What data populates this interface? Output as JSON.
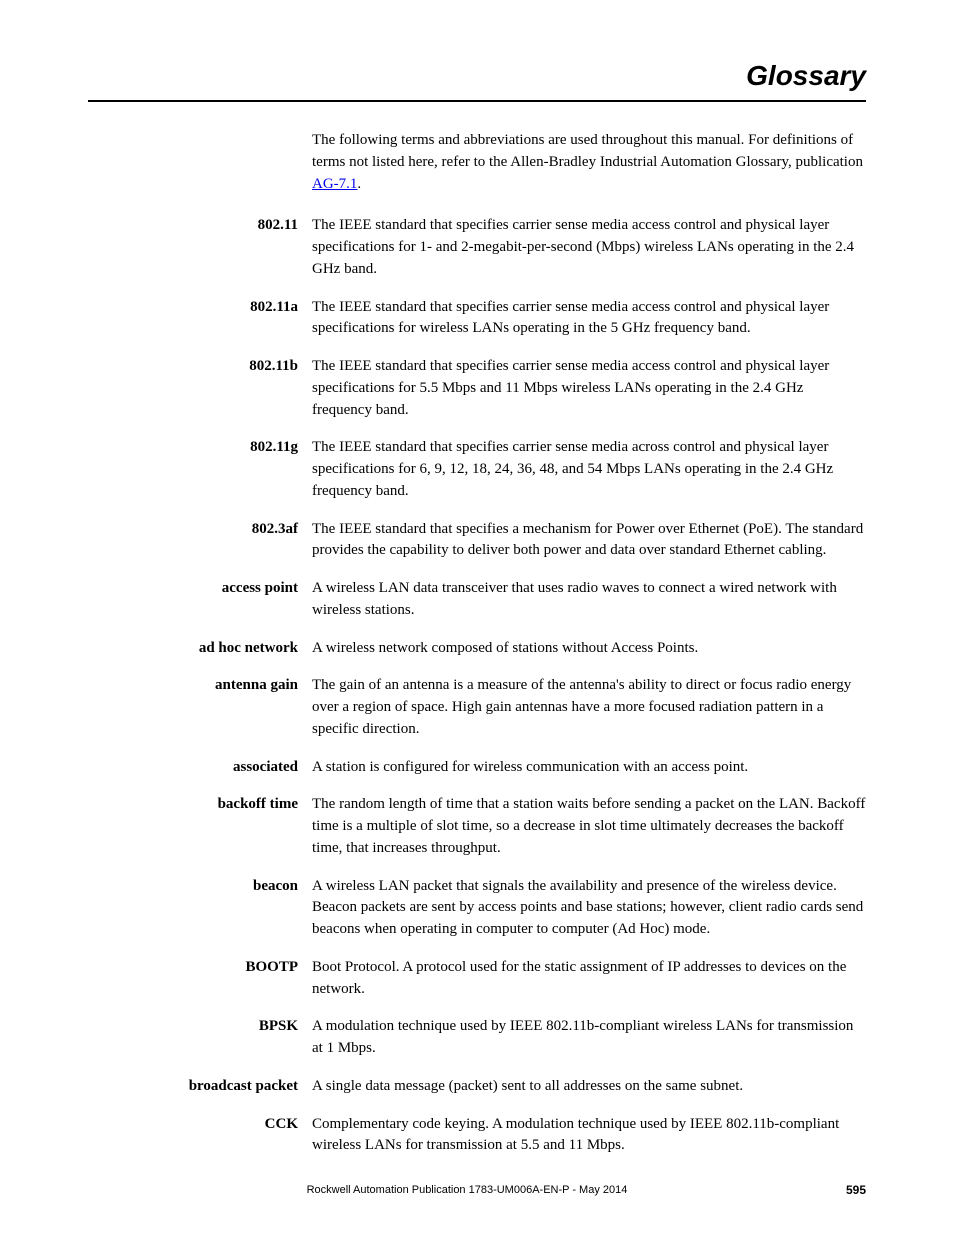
{
  "header": {
    "title": "Glossary"
  },
  "intro": {
    "text_before": "The following terms and abbreviations are used throughout this manual. For definitions of terms not listed here, refer to the Allen-Bradley Industrial Automation Glossary, publication ",
    "link_text": "AG-7.1",
    "text_after": "."
  },
  "entries": [
    {
      "term": "802.11",
      "definition": "The IEEE standard that specifies carrier sense media access control and physical layer specifications for 1- and 2-megabit-per-second (Mbps) wireless LANs operating in the 2.4 GHz band."
    },
    {
      "term": "802.11a",
      "definition": "The IEEE standard that specifies carrier sense media access control and physical layer specifications for wireless LANs operating in the 5 GHz frequency band."
    },
    {
      "term": "802.11b",
      "definition": "The IEEE standard that specifies carrier sense media access control and physical layer specifications for 5.5 Mbps and 11 Mbps wireless LANs operating in the 2.4 GHz frequency band."
    },
    {
      "term": "802.11g",
      "definition": "The IEEE standard that specifies carrier sense media across control and physical layer specifications for 6, 9, 12, 18, 24, 36, 48, and 54 Mbps LANs operating in the 2.4 GHz frequency band."
    },
    {
      "term": "802.3af",
      "definition": "The IEEE standard that specifies a mechanism for Power over Ethernet (PoE). The standard provides the capability to deliver both power and data over standard Ethernet cabling."
    },
    {
      "term": "access point",
      "definition": "A wireless LAN data transceiver that uses radio waves to connect a wired network with wireless stations."
    },
    {
      "term": "ad hoc network",
      "definition": "A wireless network composed of stations without Access Points."
    },
    {
      "term": "antenna gain",
      "definition": "The gain of an antenna is a measure of the antenna's ability to direct or focus radio energy over a region of space. High gain antennas have a more focused radiation pattern in a specific direction."
    },
    {
      "term": "associated",
      "definition": "A station is configured for wireless communication with an access point."
    },
    {
      "term": "backoff time",
      "definition": "The random length of time that a station waits before sending a packet on the LAN. Backoff time is a multiple of slot time, so a decrease in slot time ultimately decreases the backoff time, that increases throughput."
    },
    {
      "term": "beacon",
      "definition": "A wireless LAN packet that signals the availability and presence of the wireless device. Beacon packets are sent by access points and base stations; however, client radio cards send beacons when operating in computer to computer (Ad Hoc) mode."
    },
    {
      "term": "BOOTP",
      "definition": "Boot Protocol. A protocol used for the static assignment of IP addresses to devices on the network."
    },
    {
      "term": "BPSK",
      "definition": "A modulation technique used by IEEE 802.11b-compliant wireless LANs for transmission at 1 Mbps."
    },
    {
      "term": "broadcast packet",
      "definition": "A single data message (packet) sent to all addresses on the same subnet."
    },
    {
      "term": "CCK",
      "definition": "Complementary code keying. A modulation technique used by IEEE 802.11b-compliant wireless LANs for transmission at 5.5 and 11 Mbps."
    }
  ],
  "footer": {
    "text": "Rockwell Automation Publication 1783-UM006A-EN-P - May 2014",
    "page": "595"
  }
}
